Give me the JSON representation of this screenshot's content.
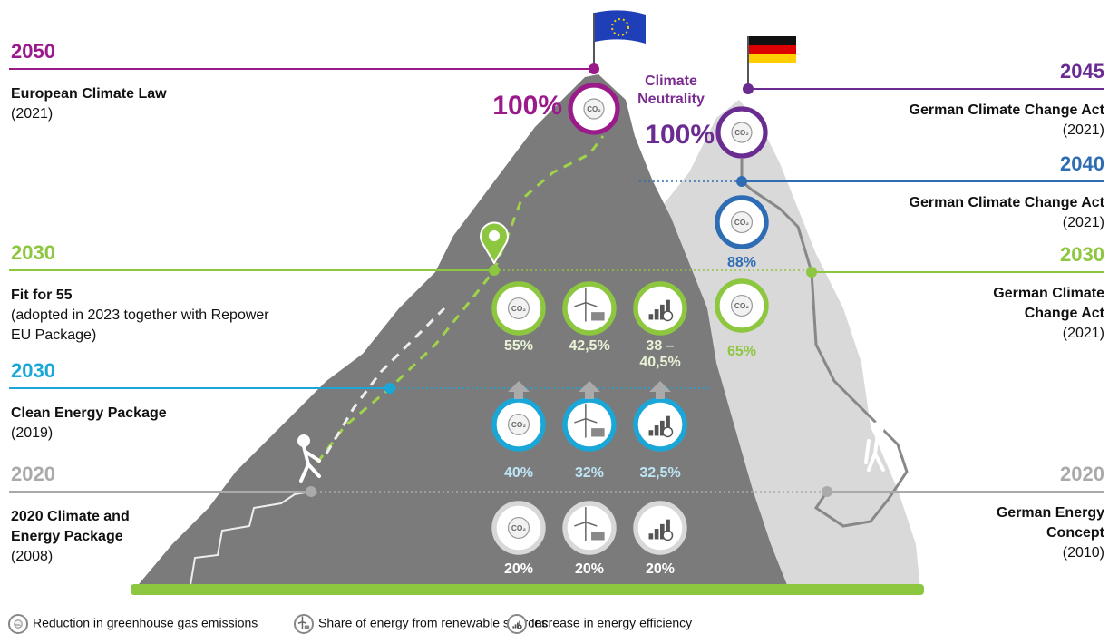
{
  "left": [
    {
      "year": "2050",
      "title": [
        "European Climate Law"
      ],
      "note": [
        "(2021)"
      ]
    },
    {
      "year": "2030",
      "title": [
        "Fit for 55"
      ],
      "note": [
        "(adopted in 2023 together with Repower",
        "EU Package)"
      ]
    },
    {
      "year": "2030",
      "title": [
        "Clean Energy Package"
      ],
      "note": [
        "(2019)"
      ]
    },
    {
      "year": "2020",
      "title": [
        "2020 Climate and",
        "Energy Package"
      ],
      "note": [
        "(2008)"
      ]
    }
  ],
  "right": [
    {
      "year": "2045",
      "title": [
        "German Climate Change Act"
      ],
      "note": [
        "(2021)"
      ]
    },
    {
      "year": "2040",
      "title": [
        "German Climate Change Act"
      ],
      "note": [
        "(2021)"
      ]
    },
    {
      "year": "2030",
      "title": [
        "German Climate",
        "Change Act"
      ],
      "note": [
        "(2021)"
      ]
    },
    {
      "year": "2020",
      "title": [
        "German Energy",
        "Concept"
      ],
      "note": [
        "(2010)"
      ]
    }
  ],
  "summit": {
    "label": [
      "Climate",
      "Neutrality"
    ],
    "eu": "100%",
    "de": "100%"
  },
  "eu_targets": [
    [
      "55%",
      "42,5%",
      [
        "38 –",
        "40,5%"
      ]
    ],
    [
      "40%",
      "32%",
      "32,5%"
    ],
    [
      "20%",
      "20%",
      "20%"
    ]
  ],
  "de_targets": [
    "88%",
    "65%"
  ],
  "icons": {
    "co2": "CO₂"
  },
  "legend": [
    "Reduction in greenhouse gas emissions",
    "Share of energy from renewable sources",
    "Increase in energy efficiency"
  ]
}
